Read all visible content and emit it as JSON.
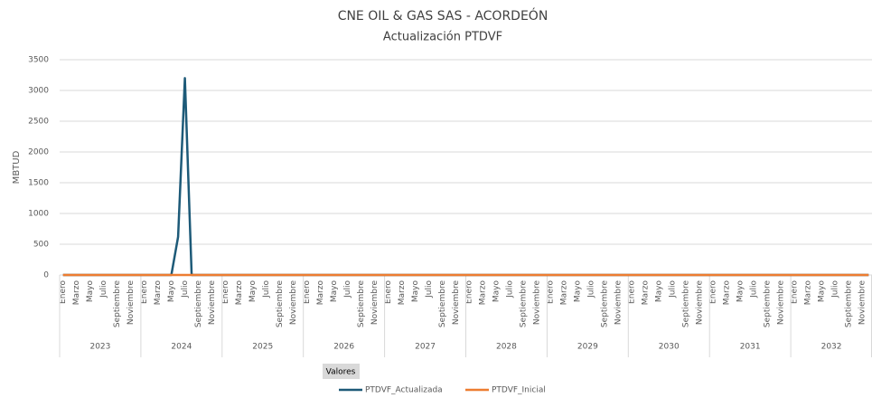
{
  "chart_data": {
    "type": "line",
    "title": "CNE OIL & GAS SAS - ACORDEÓN",
    "subtitle": "Actualización PTDVF",
    "y_axis_label": "MBTUD",
    "field_button": "Valores",
    "category_groups": [
      "2023",
      "2024",
      "2025",
      "2026",
      "2027",
      "2028",
      "2029",
      "2030",
      "2031",
      "2032"
    ],
    "categories": [
      "Enero",
      null,
      "Marzo",
      null,
      "Mayo",
      null,
      "Julio",
      null,
      "Septiembre",
      null,
      "Noviembre",
      null,
      "Enero",
      null,
      "Marzo",
      null,
      "Mayo",
      null,
      "Julio",
      null,
      "Septiembre",
      null,
      "Noviembre",
      null,
      "Enero",
      null,
      "Marzo",
      null,
      "Mayo",
      null,
      "Julio",
      null,
      "Septiembre",
      null,
      "Noviembre",
      null,
      "Enero",
      null,
      "Marzo",
      null,
      "Mayo",
      null,
      "Julio",
      null,
      "Septiembre",
      null,
      "Noviembre",
      null,
      "Enero",
      null,
      "Marzo",
      null,
      "Mayo",
      null,
      "Julio",
      null,
      "Septiembre",
      null,
      "Noviembre",
      null,
      "Enero",
      null,
      "Marzo",
      null,
      "Mayo",
      null,
      "Julio",
      null,
      "Septiembre",
      null,
      "Noviembre",
      null,
      "Enero",
      null,
      "Marzo",
      null,
      "Mayo",
      null,
      "Julio",
      null,
      "Septiembre",
      null,
      "Noviembre",
      null,
      "Enero",
      null,
      "Marzo",
      null,
      "Mayo",
      null,
      "Julio",
      null,
      "Septiembre",
      null,
      "Noviembre",
      null,
      "Enero",
      null,
      "Marzo",
      null,
      "Mayo",
      null,
      "Julio",
      null,
      "Septiembre",
      null,
      "Noviembre",
      null,
      "Enero",
      null,
      "Marzo",
      null,
      "Mayo",
      null,
      "Julio",
      null,
      "Septiembre",
      null,
      "Noviembre",
      null
    ],
    "series": [
      {
        "name": "PTDVF_Actualizada",
        "color": "#1d5a78",
        "values": [
          0,
          0,
          0,
          0,
          0,
          0,
          0,
          0,
          0,
          0,
          0,
          0,
          0,
          0,
          0,
          0,
          0,
          620,
          3200,
          0,
          0,
          0,
          0,
          0,
          0,
          0,
          0,
          0,
          0,
          0,
          0,
          0,
          0,
          0,
          0,
          0,
          0,
          0,
          0,
          0,
          0,
          0,
          0,
          0,
          0,
          0,
          0,
          0,
          0,
          0,
          0,
          0,
          0,
          0,
          0,
          0,
          0,
          0,
          0,
          0,
          0,
          0,
          0,
          0,
          0,
          0,
          0,
          0,
          0,
          0,
          0,
          0,
          0,
          0,
          0,
          0,
          0,
          0,
          0,
          0,
          0,
          0,
          0,
          0,
          0,
          0,
          0,
          0,
          0,
          0,
          0,
          0,
          0,
          0,
          0,
          0,
          0,
          0,
          0,
          0,
          0,
          0,
          0,
          0,
          0,
          0,
          0,
          0,
          0,
          0,
          0,
          0,
          0,
          0,
          0,
          0,
          0,
          0,
          0,
          0
        ]
      },
      {
        "name": "PTDVF_Inicial",
        "color": "#ed7d31",
        "values": [
          0,
          0,
          0,
          0,
          0,
          0,
          0,
          0,
          0,
          0,
          0,
          0,
          0,
          0,
          0,
          0,
          0,
          0,
          0,
          0,
          0,
          0,
          0,
          0,
          0,
          0,
          0,
          0,
          0,
          0,
          0,
          0,
          0,
          0,
          0,
          0,
          0,
          0,
          0,
          0,
          0,
          0,
          0,
          0,
          0,
          0,
          0,
          0,
          0,
          0,
          0,
          0,
          0,
          0,
          0,
          0,
          0,
          0,
          0,
          0,
          0,
          0,
          0,
          0,
          0,
          0,
          0,
          0,
          0,
          0,
          0,
          0,
          0,
          0,
          0,
          0,
          0,
          0,
          0,
          0,
          0,
          0,
          0,
          0,
          0,
          0,
          0,
          0,
          0,
          0,
          0,
          0,
          0,
          0,
          0,
          0,
          0,
          0,
          0,
          0,
          0,
          0,
          0,
          0,
          0,
          0,
          0,
          0,
          0,
          0,
          0,
          0,
          0,
          0,
          0,
          0,
          0,
          0,
          0,
          0
        ]
      }
    ],
    "ylim": [
      0,
      3500
    ],
    "yticks": [
      0,
      500,
      1000,
      1500,
      2000,
      2500,
      3000,
      3500
    ],
    "grid": true,
    "legend": "bottom"
  }
}
